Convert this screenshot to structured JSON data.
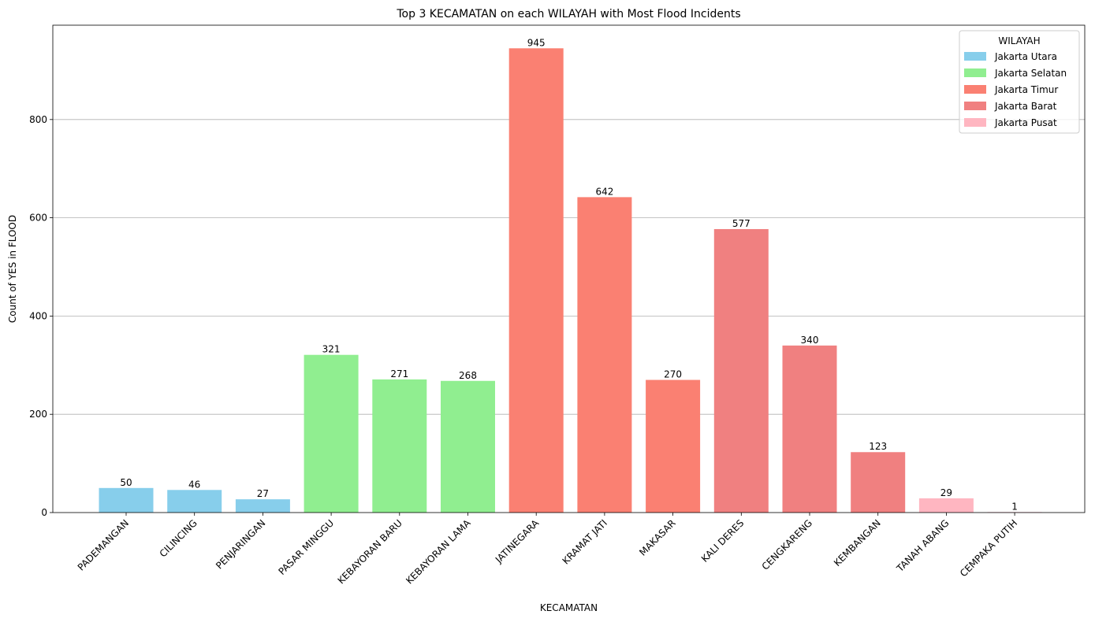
{
  "chart_data": {
    "type": "bar",
    "title": "Top 3 KECAMATAN on each WILAYAH with Most Flood Incidents",
    "xlabel": "KECAMATAN",
    "ylabel": "Count of YES in FLOOD",
    "ylim": [
      0,
      992
    ],
    "yticks": [
      0,
      200,
      400,
      600,
      800
    ],
    "grid": "y",
    "legend_title": "WILAYAH",
    "legend_position": "top-right",
    "groups": [
      {
        "name": "Jakarta Utara",
        "color": "#87ceeb"
      },
      {
        "name": "Jakarta Selatan",
        "color": "#90ee90"
      },
      {
        "name": "Jakarta Timur",
        "color": "#fa8072"
      },
      {
        "name": "Jakarta Barat",
        "color": "#f08080"
      },
      {
        "name": "Jakarta Pusat",
        "color": "#ffb6c1"
      }
    ],
    "categories": [
      "PADEMANGAN",
      "CILINCING",
      "PENJARINGAN",
      "PASAR MINGGU",
      "KEBAYORAN BARU",
      "KEBAYORAN LAMA",
      "JATINEGARA",
      "KRAMAT JATI",
      "MAKASAR",
      "KALI DERES",
      "CENGKARENG",
      "KEMBANGAN",
      "TANAH ABANG",
      "CEMPAKA PUTIH"
    ],
    "values": [
      50,
      46,
      27,
      321,
      271,
      268,
      945,
      642,
      270,
      577,
      340,
      123,
      29,
      1
    ],
    "category_group": [
      "Jakarta Utara",
      "Jakarta Utara",
      "Jakarta Utara",
      "Jakarta Selatan",
      "Jakarta Selatan",
      "Jakarta Selatan",
      "Jakarta Timur",
      "Jakarta Timur",
      "Jakarta Timur",
      "Jakarta Barat",
      "Jakarta Barat",
      "Jakarta Barat",
      "Jakarta Pusat",
      "Jakarta Pusat"
    ]
  }
}
